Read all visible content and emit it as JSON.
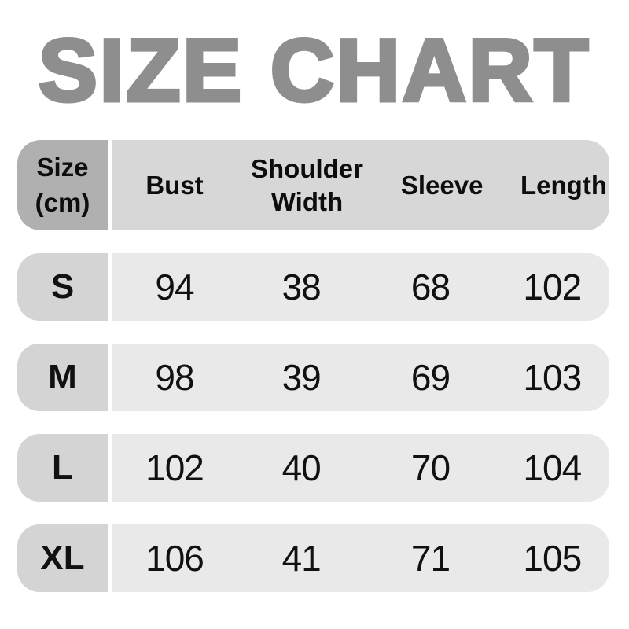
{
  "title": "SIZE CHART",
  "table": {
    "header": {
      "size_line1": "Size",
      "size_line2": "(cm)",
      "columns": [
        "Bust",
        "Shoulder Width",
        "Sleeve",
        "Length"
      ]
    },
    "rows": [
      {
        "size": "S",
        "values": [
          "94",
          "38",
          "68",
          "102"
        ]
      },
      {
        "size": "M",
        "values": [
          "98",
          "39",
          "69",
          "103"
        ]
      },
      {
        "size": "L",
        "values": [
          "102",
          "40",
          "70",
          "104"
        ]
      },
      {
        "size": "XL",
        "values": [
          "106",
          "41",
          "71",
          "105"
        ]
      }
    ]
  },
  "colors": {
    "title": "#8e8e8e",
    "header_size_bg": "#b0b0b0",
    "header_bg": "#d7d7d7",
    "row_size_bg": "#d4d4d4",
    "row_bg": "#e9e9e9",
    "text": "#111111",
    "background": "#ffffff"
  },
  "chart_data": {
    "type": "table",
    "title": "SIZE CHART",
    "unit": "cm",
    "columns": [
      "Size (cm)",
      "Bust",
      "Shoulder Width",
      "Sleeve",
      "Length"
    ],
    "rows": [
      [
        "S",
        94,
        38,
        68,
        102
      ],
      [
        "M",
        98,
        39,
        69,
        103
      ],
      [
        "L",
        102,
        40,
        70,
        104
      ],
      [
        "XL",
        106,
        41,
        71,
        105
      ]
    ]
  }
}
